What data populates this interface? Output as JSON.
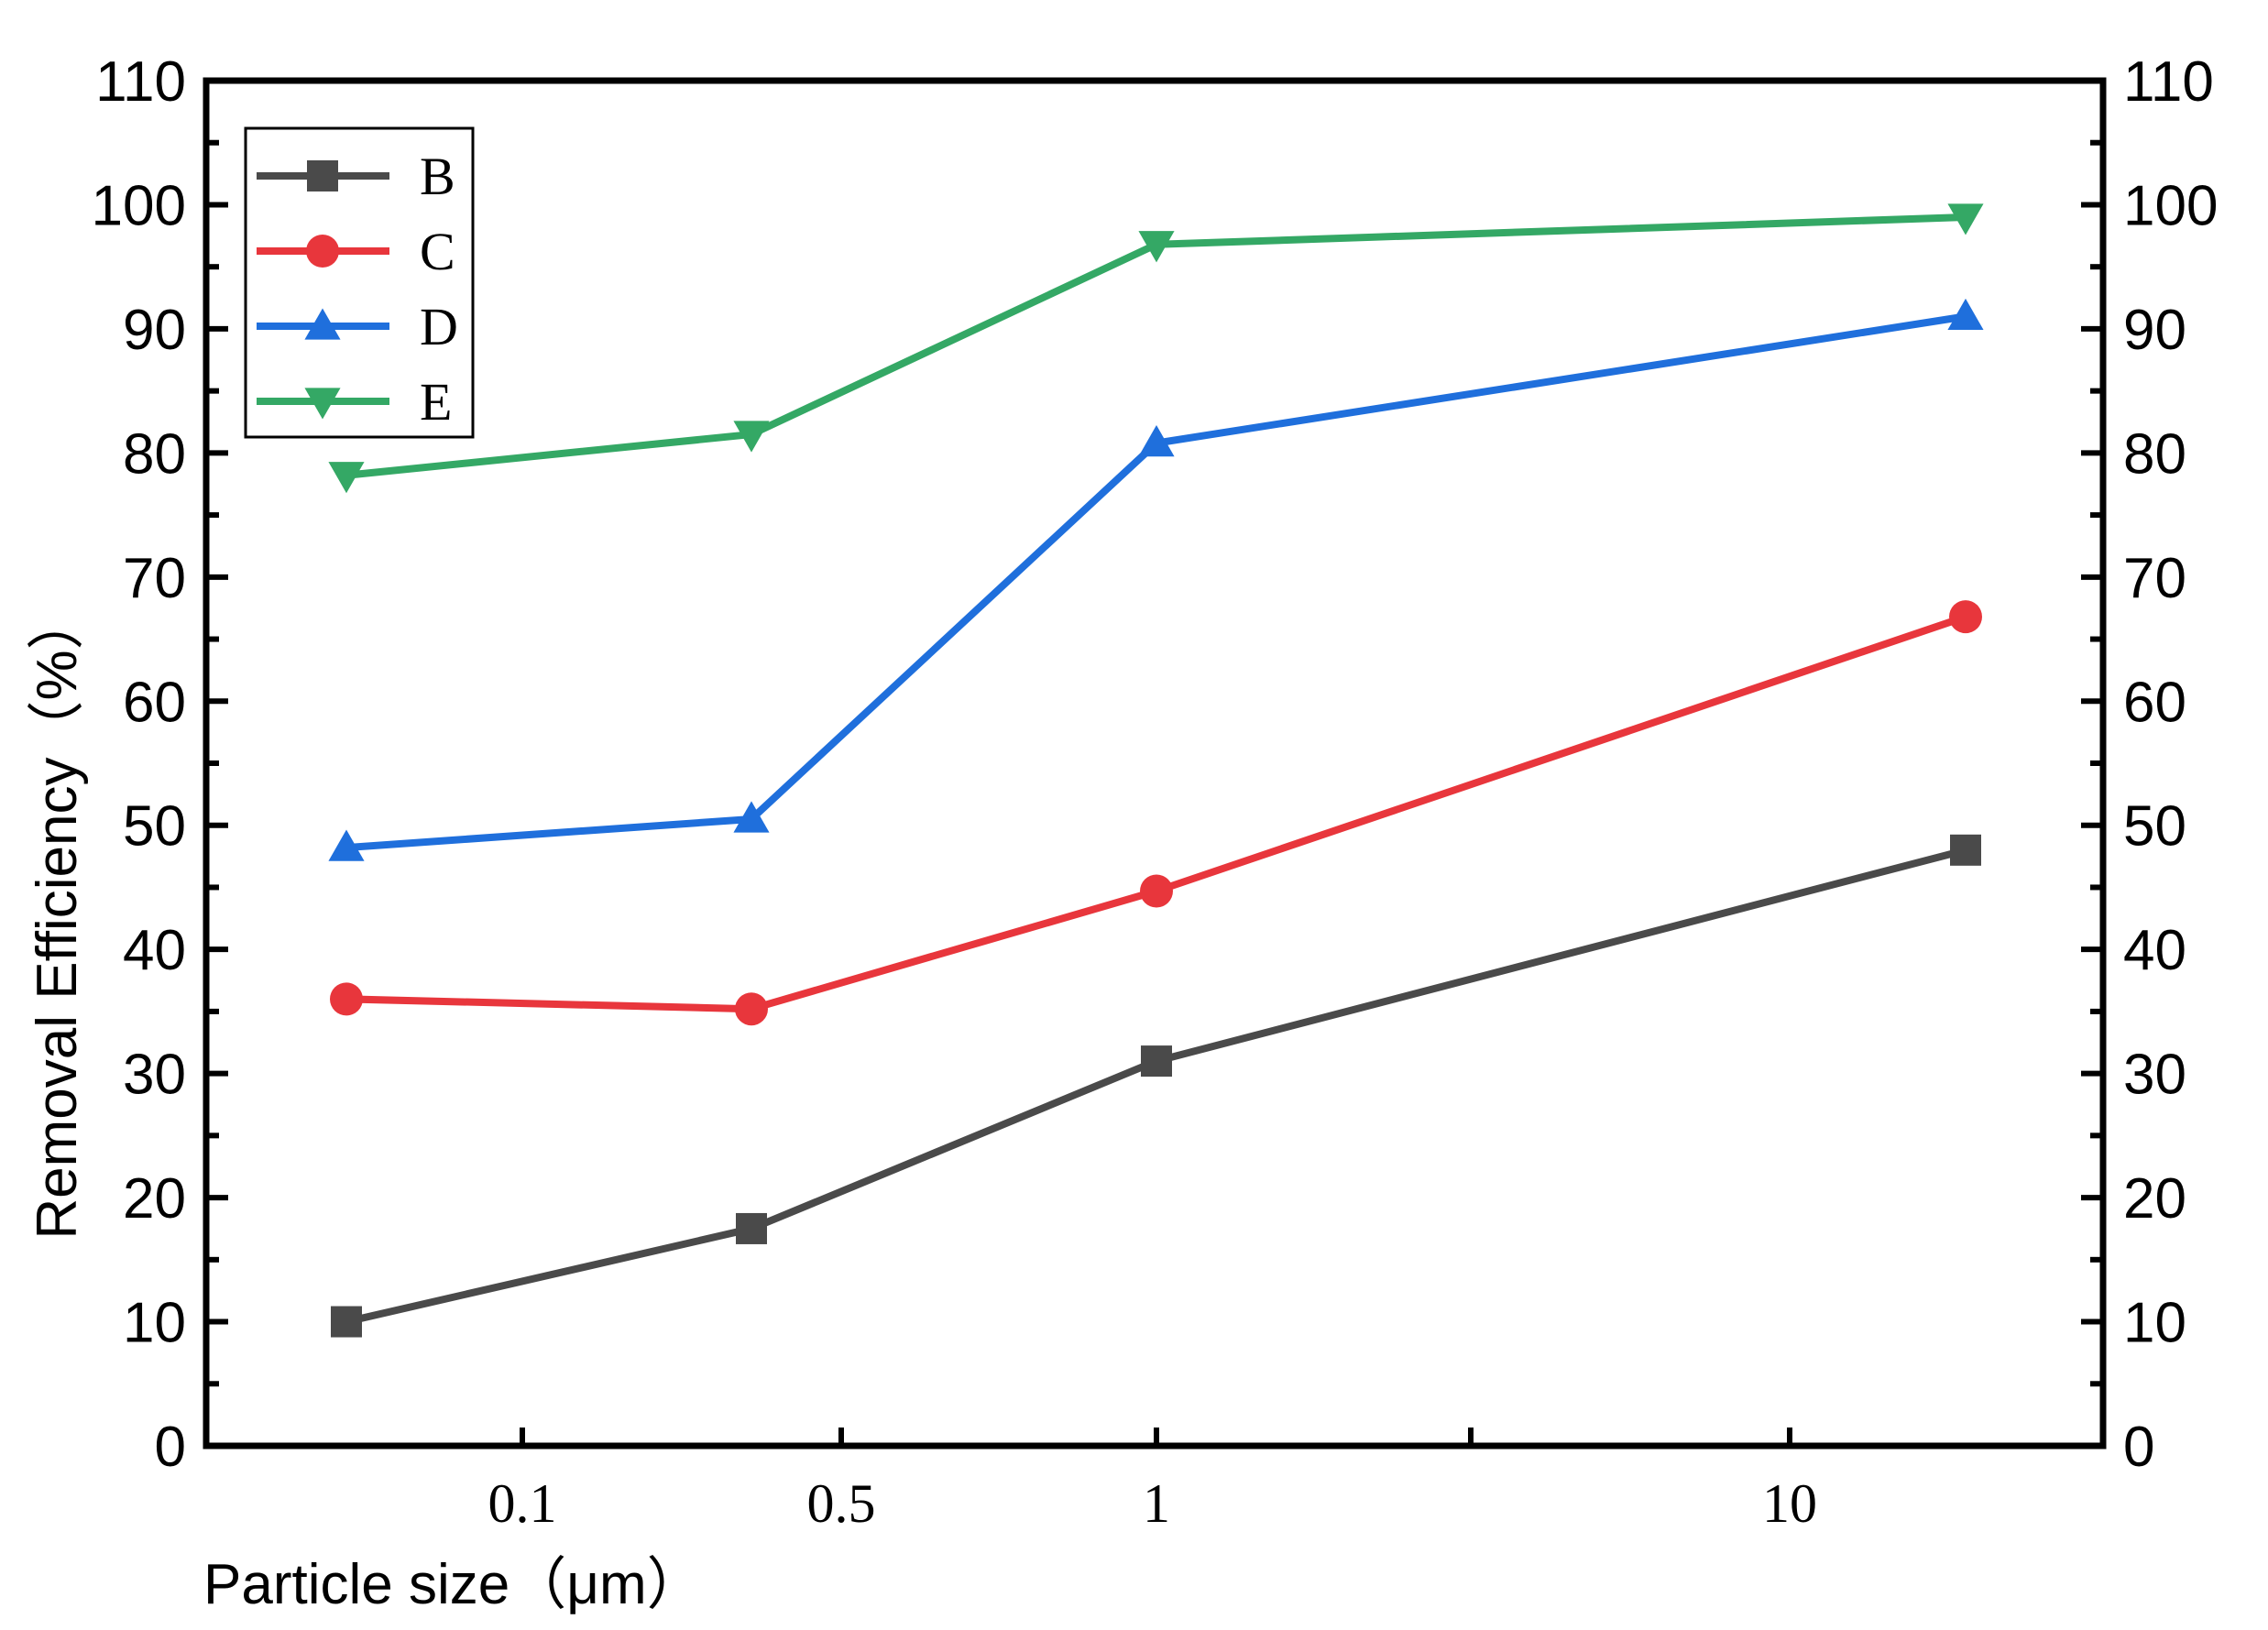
{
  "chart_data": {
    "type": "line",
    "title": "",
    "xlabel": "Particle size（μm）",
    "ylabel": "Removal  Efficiency（%）",
    "x_tick_labels": [
      "0.1",
      "0.5",
      "1",
      "10"
    ],
    "ylim": [
      0,
      110
    ],
    "y_ticks": [
      0,
      10,
      20,
      30,
      40,
      50,
      60,
      70,
      80,
      90,
      100,
      110
    ],
    "legend_position": "top-left",
    "series": [
      {
        "name": "B",
        "color": "#4a4a4a",
        "marker": "square",
        "values": [
          10,
          17.5,
          31,
          48
        ]
      },
      {
        "name": "C",
        "color": "#e8363c",
        "marker": "circle",
        "values": [
          36,
          35.2,
          44.7,
          66.8
        ]
      },
      {
        "name": "D",
        "color": "#1f6fdc",
        "marker": "triangle-up",
        "values": [
          48.2,
          50.5,
          80.8,
          91
        ]
      },
      {
        "name": "E",
        "color": "#34a865",
        "marker": "triangle-down",
        "values": [
          78.2,
          81.5,
          96.8,
          99
        ]
      }
    ]
  }
}
